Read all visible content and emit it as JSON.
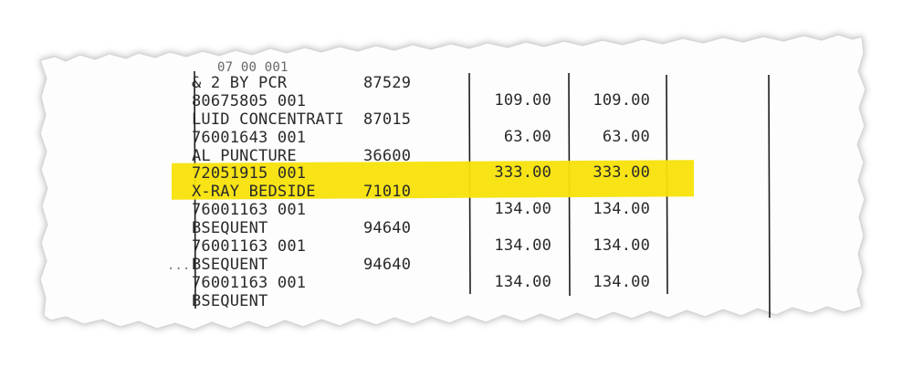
{
  "receipt": {
    "cut_top_text": "07 00 001",
    "stray_mark": "...",
    "rows": [
      {
        "desc": "& 2 BY PCR",
        "code": "87529",
        "amt1": "",
        "amt2": ""
      },
      {
        "desc": "80675805 001",
        "code": "",
        "amt1": "109.00",
        "amt2": "109.00"
      },
      {
        "desc": "LUID CONCENTRATI",
        "code": "87015",
        "amt1": "",
        "amt2": ""
      },
      {
        "desc": "76001643 001",
        "code": "",
        "amt1": "63.00",
        "amt2": "63.00"
      },
      {
        "desc": "AL PUNCTURE",
        "code": "36600",
        "amt1": "",
        "amt2": ""
      },
      {
        "desc": "72051915 001",
        "code": "",
        "amt1": "333.00",
        "amt2": "333.00"
      },
      {
        "desc": "X-RAY BEDSIDE",
        "code": "71010",
        "amt1": "",
        "amt2": ""
      },
      {
        "desc": "76001163 001",
        "code": "",
        "amt1": "134.00",
        "amt2": "134.00"
      },
      {
        "desc": "BSEQUENT",
        "code": "94640",
        "amt1": "",
        "amt2": ""
      },
      {
        "desc": "76001163 001",
        "code": "",
        "amt1": "134.00",
        "amt2": "134.00"
      },
      {
        "desc": "BSEQUENT",
        "code": "94640",
        "amt1": "",
        "amt2": ""
      },
      {
        "desc": "76001163 001",
        "code": "",
        "amt1": "134.00",
        "amt2": "134.00"
      },
      {
        "desc": "BSEQUENT",
        "code": "",
        "amt1": "",
        "amt2": ""
      }
    ],
    "highlight_color": "#f7e20a",
    "text_color": "#2a2a2a"
  }
}
